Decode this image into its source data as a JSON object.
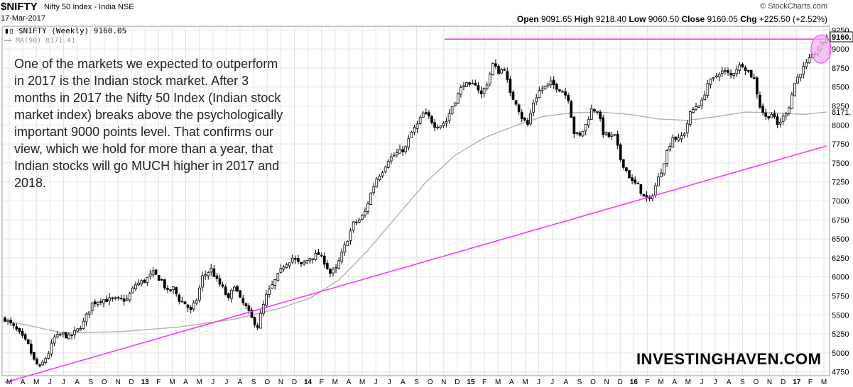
{
  "header": {
    "symbol": "$NIFTY",
    "name": "Nifty 50 Index - India NSE",
    "date": "17-Mar-2017",
    "brand": "© StockCharts.com",
    "open_label": "Open",
    "open": "9091.65",
    "high_label": "High",
    "high": "9218.40",
    "low_label": "Low",
    "low": "9060.50",
    "close_label": "Close",
    "close": "9160.05",
    "chg_label": "Chg",
    "chg": "+225.50 (+2.52%)"
  },
  "legend": {
    "price_label": "$NIFTY (Weekly) 9160.05",
    "ma_label": "MA(90) 8171.41",
    "price_icon": "candlestick-icon",
    "ma_icon": "line-swatch-icon"
  },
  "annotation": "One of the markets we expected to outperform in 2017 is the Indian stock market. After 3 months in 2017 the Nifty 50 Index (Indian stock market index) breaks above the psychologically important 9000 points level. That confirms our view, which we hold for more than a year, that Indian stocks will go MUCH higher in 2017 and 2018.",
  "watermark": "INVESTINGHAVEN.COM",
  "colors": {
    "price": "#000000",
    "ma": "#b0b0b0",
    "trend": "#ff33ff",
    "highlight": "#f6b3f0",
    "grid": "#e3e3e3"
  },
  "chart_data": {
    "type": "candlestick",
    "ylim": [
      4700,
      9300
    ],
    "y_ticks": [
      4750,
      5000,
      5250,
      5500,
      5750,
      6000,
      6250,
      6500,
      6750,
      7000,
      7250,
      7500,
      7750,
      8000,
      8250,
      8500,
      8750,
      9000,
      9250
    ],
    "last_price_label": "9160.",
    "ma_last_label": "8171.",
    "x_ticks": [
      "M",
      "A",
      "M",
      "J",
      "J",
      "A",
      "S",
      "O",
      "N",
      "D",
      "13",
      "F",
      "M",
      "A",
      "M",
      "J",
      "J",
      "A",
      "S",
      "O",
      "N",
      "D",
      "14",
      "F",
      "M",
      "A",
      "M",
      "J",
      "J",
      "A",
      "S",
      "O",
      "N",
      "D",
      "15",
      "F",
      "M",
      "A",
      "M",
      "J",
      "J",
      "A",
      "S",
      "O",
      "N",
      "D",
      "16",
      "F",
      "M",
      "A",
      "M",
      "J",
      "J",
      "A",
      "S",
      "O",
      "N",
      "D",
      "17",
      "F",
      "M"
    ],
    "close_anchors": [
      [
        0,
        5450
      ],
      [
        4,
        5300
      ],
      [
        8,
        5100
      ],
      [
        10,
        4900
      ],
      [
        12,
        4800
      ],
      [
        15,
        5000
      ],
      [
        17,
        5200
      ],
      [
        20,
        5250
      ],
      [
        22,
        5200
      ],
      [
        25,
        5300
      ],
      [
        27,
        5400
      ],
      [
        30,
        5650
      ],
      [
        33,
        5700
      ],
      [
        38,
        5700
      ],
      [
        42,
        5700
      ],
      [
        45,
        5900
      ],
      [
        48,
        5950
      ],
      [
        51,
        6050
      ],
      [
        54,
        5950
      ],
      [
        56,
        5800
      ],
      [
        58,
        5850
      ],
      [
        60,
        5700
      ],
      [
        62,
        5650
      ],
      [
        64,
        5550
      ],
      [
        66,
        5700
      ],
      [
        68,
        6000
      ],
      [
        71,
        6100
      ],
      [
        73,
        5950
      ],
      [
        75,
        5850
      ],
      [
        77,
        5700
      ],
      [
        79,
        5900
      ],
      [
        81,
        5700
      ],
      [
        83,
        5600
      ],
      [
        85,
        5450
      ],
      [
        87,
        5350
      ],
      [
        88,
        5500
      ],
      [
        90,
        5750
      ],
      [
        93,
        5950
      ],
      [
        96,
        6150
      ],
      [
        99,
        6250
      ],
      [
        102,
        6150
      ],
      [
        105,
        6250
      ],
      [
        108,
        6300
      ],
      [
        110,
        6200
      ],
      [
        112,
        6050
      ],
      [
        114,
        6100
      ],
      [
        116,
        6300
      ],
      [
        118,
        6500
      ],
      [
        120,
        6700
      ],
      [
        122,
        6750
      ],
      [
        124,
        6850
      ],
      [
        126,
        7100
      ],
      [
        128,
        7300
      ],
      [
        130,
        7400
      ],
      [
        132,
        7550
      ],
      [
        134,
        7600
      ],
      [
        136,
        7650
      ],
      [
        138,
        7700
      ],
      [
        140,
        7900
      ],
      [
        142,
        8000
      ],
      [
        144,
        8150
      ],
      [
        146,
        8100
      ],
      [
        148,
        8000
      ],
      [
        150,
        8000
      ],
      [
        152,
        8050
      ],
      [
        154,
        8250
      ],
      [
        156,
        8400
      ],
      [
        158,
        8550
      ],
      [
        160,
        8500
      ],
      [
        162,
        8550
      ],
      [
        164,
        8400
      ],
      [
        166,
        8550
      ],
      [
        168,
        8800
      ],
      [
        170,
        8700
      ],
      [
        172,
        8750
      ],
      [
        174,
        8400
      ],
      [
        176,
        8300
      ],
      [
        178,
        8100
      ],
      [
        180,
        8000
      ],
      [
        182,
        8300
      ],
      [
        184,
        8450
      ],
      [
        186,
        8500
      ],
      [
        188,
        8550
      ],
      [
        190,
        8500
      ],
      [
        192,
        8450
      ],
      [
        194,
        8350
      ],
      [
        196,
        7900
      ],
      [
        198,
        7850
      ],
      [
        200,
        8000
      ],
      [
        202,
        8200
      ],
      [
        204,
        8200
      ],
      [
        206,
        7900
      ],
      [
        208,
        7850
      ],
      [
        210,
        7850
      ],
      [
        212,
        7550
      ],
      [
        214,
        7400
      ],
      [
        216,
        7250
      ],
      [
        218,
        7200
      ],
      [
        220,
        7050
      ],
      [
        222,
        7000
      ],
      [
        224,
        7200
      ],
      [
        226,
        7400
      ],
      [
        228,
        7650
      ],
      [
        230,
        7850
      ],
      [
        232,
        7800
      ],
      [
        234,
        7900
      ],
      [
        236,
        8150
      ],
      [
        238,
        8250
      ],
      [
        240,
        8300
      ],
      [
        242,
        8550
      ],
      [
        244,
        8600
      ],
      [
        246,
        8700
      ],
      [
        248,
        8700
      ],
      [
        250,
        8650
      ],
      [
        252,
        8750
      ],
      [
        254,
        8800
      ],
      [
        256,
        8700
      ],
      [
        258,
        8600
      ],
      [
        260,
        8250
      ],
      [
        262,
        8100
      ],
      [
        264,
        8150
      ],
      [
        266,
        8000
      ],
      [
        268,
        8100
      ],
      [
        270,
        8250
      ],
      [
        272,
        8550
      ],
      [
        274,
        8700
      ],
      [
        276,
        8800
      ],
      [
        278,
        8900
      ],
      [
        280,
        9000
      ],
      [
        282,
        9100
      ],
      [
        283,
        9160
      ]
    ],
    "ma_anchors": [
      [
        0,
        5430
      ],
      [
        20,
        5260
      ],
      [
        40,
        5280
      ],
      [
        60,
        5340
      ],
      [
        80,
        5450
      ],
      [
        95,
        5590
      ],
      [
        105,
        5720
      ],
      [
        115,
        5960
      ],
      [
        125,
        6350
      ],
      [
        135,
        6800
      ],
      [
        145,
        7250
      ],
      [
        155,
        7600
      ],
      [
        165,
        7830
      ],
      [
        175,
        7980
      ],
      [
        185,
        8110
      ],
      [
        195,
        8160
      ],
      [
        205,
        8170
      ],
      [
        215,
        8140
      ],
      [
        225,
        8080
      ],
      [
        235,
        8060
      ],
      [
        245,
        8110
      ],
      [
        255,
        8170
      ],
      [
        265,
        8160
      ],
      [
        275,
        8140
      ],
      [
        283,
        8171
      ]
    ],
    "horizontal_resistance": 9130,
    "trend_line": {
      "from": [
        0,
        4610
      ],
      "to": [
        283,
        7725
      ]
    },
    "weeks": 284
  }
}
